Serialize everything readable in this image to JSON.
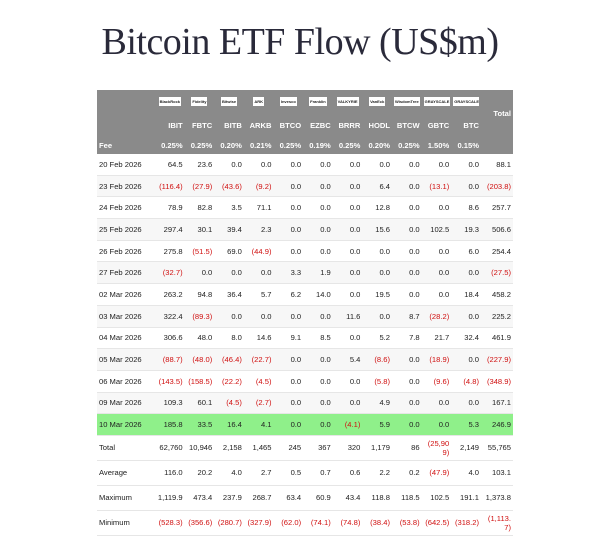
{
  "title": "Bitcoin ETF Flow (US$m)",
  "table": {
    "logos": [
      "BlackRock",
      "Fidelity",
      "Bitwise",
      "ARK",
      "Invesco",
      "Franklin",
      "VALKYRIE",
      "VanEck",
      "WisdomTree",
      "GRAYSCALE",
      "GRAYSCALE"
    ],
    "total_header": "Total",
    "tickers": [
      "IBIT",
      "FBTC",
      "BITB",
      "ARKB",
      "BTCO",
      "EZBC",
      "BRRR",
      "HODL",
      "BTCW",
      "GBTC",
      "BTC"
    ],
    "fee_label": "Fee",
    "fees": [
      "0.25%",
      "0.25%",
      "0.20%",
      "0.21%",
      "0.25%",
      "0.19%",
      "0.25%",
      "0.20%",
      "0.25%",
      "1.50%",
      "0.15%"
    ],
    "rows": [
      [
        "20 Feb 2026",
        "64.5",
        "23.6",
        "0.0",
        "0.0",
        "0.0",
        "0.0",
        "0.0",
        "0.0",
        "0.0",
        "0.0",
        "0.0",
        "88.1"
      ],
      [
        "23 Feb 2026",
        "(116.4)",
        "(27.9)",
        "(43.6)",
        "(9.2)",
        "0.0",
        "0.0",
        "0.0",
        "6.4",
        "0.0",
        "(13.1)",
        "0.0",
        "(203.8)"
      ],
      [
        "24 Feb 2026",
        "78.9",
        "82.8",
        "3.5",
        "71.1",
        "0.0",
        "0.0",
        "0.0",
        "12.8",
        "0.0",
        "0.0",
        "8.6",
        "257.7"
      ],
      [
        "25 Feb 2026",
        "297.4",
        "30.1",
        "39.4",
        "2.3",
        "0.0",
        "0.0",
        "0.0",
        "15.6",
        "0.0",
        "102.5",
        "19.3",
        "506.6"
      ],
      [
        "26 Feb 2026",
        "275.8",
        "(51.5)",
        "69.0",
        "(44.9)",
        "0.0",
        "0.0",
        "0.0",
        "0.0",
        "0.0",
        "0.0",
        "6.0",
        "254.4"
      ],
      [
        "27 Feb 2026",
        "(32.7)",
        "0.0",
        "0.0",
        "0.0",
        "3.3",
        "1.9",
        "0.0",
        "0.0",
        "0.0",
        "0.0",
        "0.0",
        "(27.5)"
      ],
      [
        "02 Mar 2026",
        "263.2",
        "94.8",
        "36.4",
        "5.7",
        "6.2",
        "14.0",
        "0.0",
        "19.5",
        "0.0",
        "0.0",
        "18.4",
        "458.2"
      ],
      [
        "03 Mar 2026",
        "322.4",
        "(89.3)",
        "0.0",
        "0.0",
        "0.0",
        "0.0",
        "11.6",
        "0.0",
        "8.7",
        "(28.2)",
        "0.0",
        "225.2"
      ],
      [
        "04 Mar 2026",
        "306.6",
        "48.0",
        "8.0",
        "14.6",
        "9.1",
        "8.5",
        "0.0",
        "5.2",
        "7.8",
        "21.7",
        "32.4",
        "461.9"
      ],
      [
        "05 Mar 2026",
        "(88.7)",
        "(48.0)",
        "(46.4)",
        "(22.7)",
        "0.0",
        "0.0",
        "5.4",
        "(8.6)",
        "0.0",
        "(18.9)",
        "0.0",
        "(227.9)"
      ],
      [
        "06 Mar 2026",
        "(143.5)",
        "(158.5)",
        "(22.2)",
        "(4.5)",
        "0.0",
        "0.0",
        "0.0",
        "(5.8)",
        "0.0",
        "(9.6)",
        "(4.8)",
        "(348.9)"
      ],
      [
        "09 Mar 2026",
        "109.3",
        "60.1",
        "(4.5)",
        "(2.7)",
        "0.0",
        "0.0",
        "0.0",
        "4.9",
        "0.0",
        "0.0",
        "0.0",
        "167.1"
      ],
      [
        "10 Mar 2026",
        "185.8",
        "33.5",
        "16.4",
        "4.1",
        "0.0",
        "0.0",
        "(4.1)",
        "5.9",
        "0.0",
        "0.0",
        "5.3",
        "246.9"
      ]
    ],
    "summary": [
      [
        "Total",
        "62,760",
        "10,946",
        "2,158",
        "1,465",
        "245",
        "367",
        "320",
        "1,179",
        "86",
        "(25,909)",
        "2,149",
        "55,765"
      ],
      [
        "Average",
        "116.0",
        "20.2",
        "4.0",
        "2.7",
        "0.5",
        "0.7",
        "0.6",
        "2.2",
        "0.2",
        "(47.9)",
        "4.0",
        "103.1"
      ],
      [
        "Maximum",
        "1,119.9",
        "473.4",
        "237.9",
        "268.7",
        "63.4",
        "60.9",
        "43.4",
        "118.8",
        "118.5",
        "102.5",
        "191.1",
        "1,373.8"
      ],
      [
        "Minimum",
        "(528.3)",
        "(356.6)",
        "(280.7)",
        "(327.9)",
        "(62.0)",
        "(74.1)",
        "(74.8)",
        "(38.4)",
        "(53.8)",
        "(642.5)",
        "(318.2)",
        "(1,113.7)"
      ]
    ]
  }
}
